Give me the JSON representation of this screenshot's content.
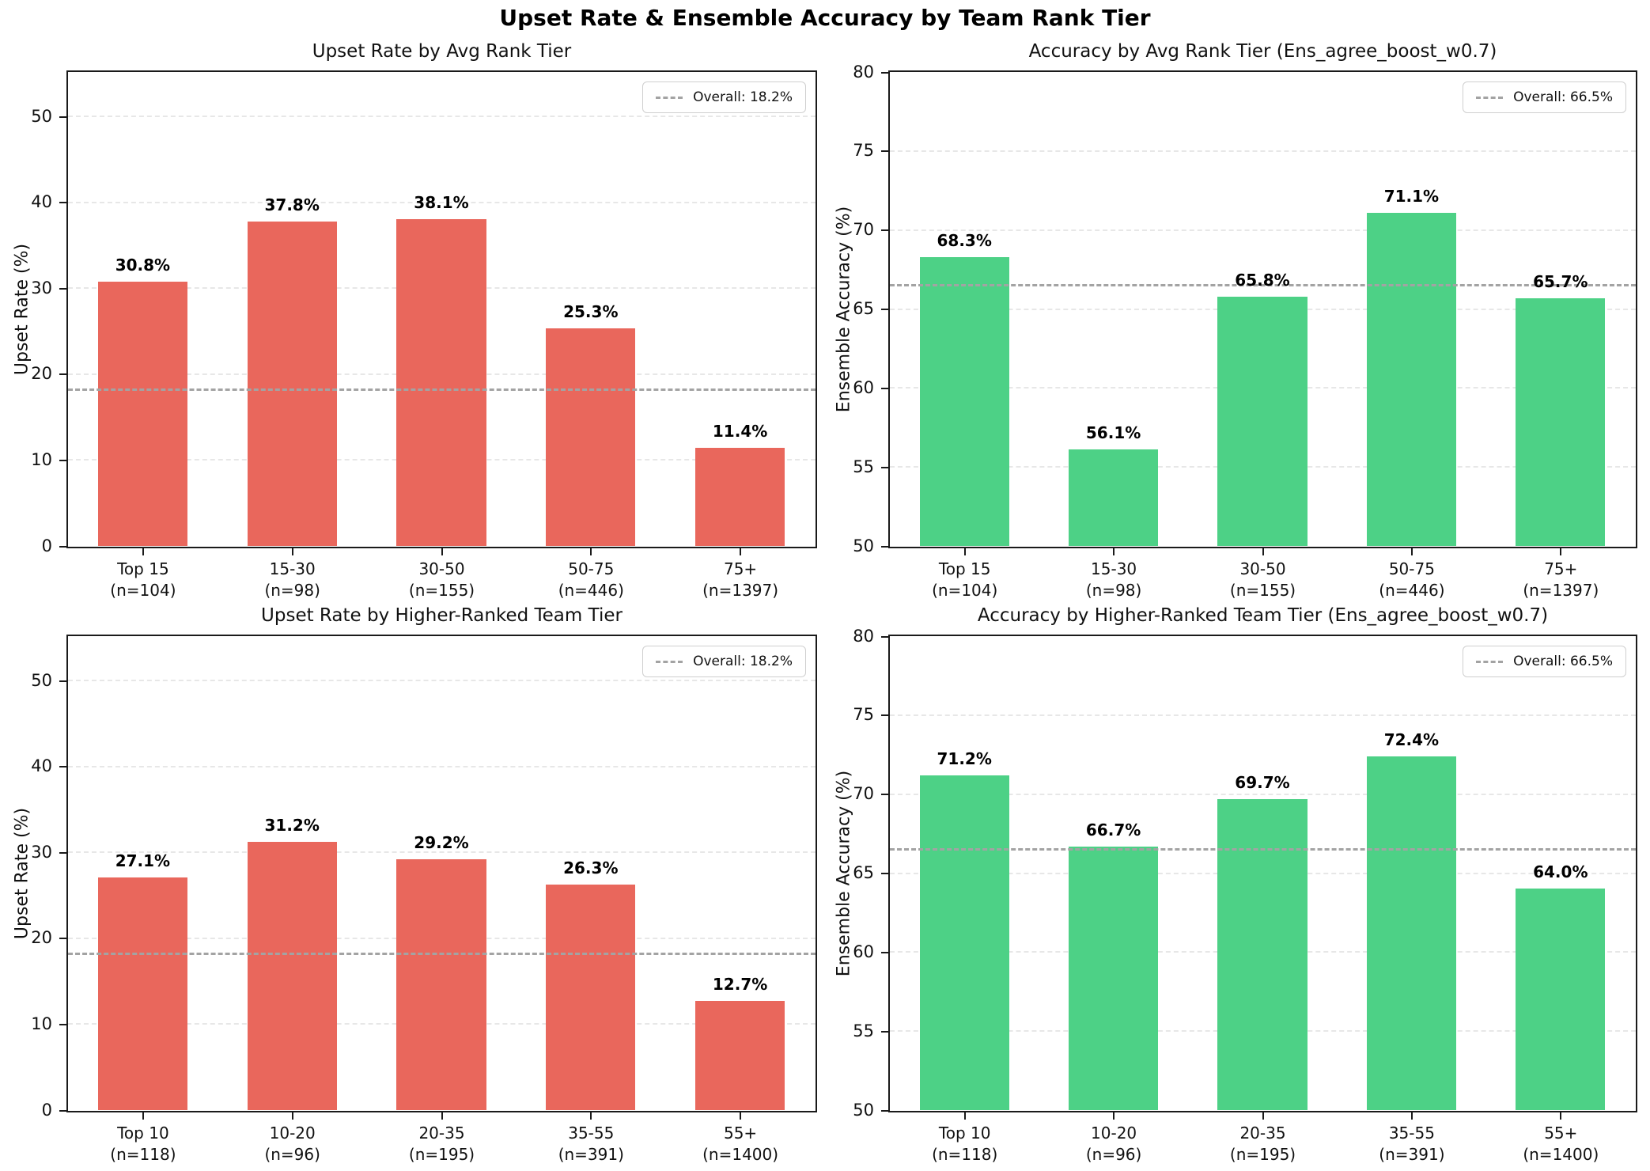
{
  "figure": {
    "title": "Upset Rate & Ensemble Accuracy by Team Rank Tier"
  },
  "colors": {
    "upset_bar": "#e9675c",
    "accuracy_bar": "#4dd186",
    "overall_line": "#a3a3a3",
    "gridline": "#e7e7e7"
  },
  "chart_data": [
    {
      "type": "bar",
      "title": "Upset Rate by Avg Rank Tier",
      "ylabel": "Upset Rate (%)",
      "ylim": [
        0,
        55.2
      ],
      "yticks": [
        0,
        10,
        20,
        30,
        40,
        50
      ],
      "grid": true,
      "legend_position": "upper right",
      "bar_color": "#e9675c",
      "categories": [
        "Top 15",
        "15-30",
        "30-50",
        "50-75",
        "75+"
      ],
      "counts": [
        "(n=104)",
        "(n=98)",
        "(n=155)",
        "(n=446)",
        "(n=1397)"
      ],
      "values": [
        30.8,
        37.8,
        38.1,
        25.3,
        11.4
      ],
      "value_labels": [
        "30.8%",
        "37.8%",
        "38.1%",
        "25.3%",
        "11.4%"
      ],
      "overall_value": 18.2,
      "legend_label": "Overall: 18.2%"
    },
    {
      "type": "bar",
      "title": "Accuracy by Avg Rank Tier (Ens_agree_boost_w0.7)",
      "ylabel": "Ensemble Accuracy (%)",
      "ylim": [
        50,
        80
      ],
      "yticks": [
        50,
        55,
        60,
        65,
        70,
        75,
        80
      ],
      "grid": true,
      "legend_position": "upper right",
      "bar_color": "#4dd186",
      "categories": [
        "Top 15",
        "15-30",
        "30-50",
        "50-75",
        "75+"
      ],
      "counts": [
        "(n=104)",
        "(n=98)",
        "(n=155)",
        "(n=446)",
        "(n=1397)"
      ],
      "values": [
        68.3,
        56.1,
        65.8,
        71.1,
        65.7
      ],
      "value_labels": [
        "68.3%",
        "56.1%",
        "65.8%",
        "71.1%",
        "65.7%"
      ],
      "overall_value": 66.5,
      "legend_label": "Overall: 66.5%"
    },
    {
      "type": "bar",
      "title": "Upset Rate by Higher-Ranked Team Tier",
      "ylabel": "Upset Rate (%)",
      "ylim": [
        0,
        55.2
      ],
      "yticks": [
        0,
        10,
        20,
        30,
        40,
        50
      ],
      "grid": true,
      "legend_position": "upper right",
      "bar_color": "#e9675c",
      "categories": [
        "Top 10",
        "10-20",
        "20-35",
        "35-55",
        "55+"
      ],
      "counts": [
        "(n=118)",
        "(n=96)",
        "(n=195)",
        "(n=391)",
        "(n=1400)"
      ],
      "values": [
        27.1,
        31.2,
        29.2,
        26.3,
        12.7
      ],
      "value_labels": [
        "27.1%",
        "31.2%",
        "29.2%",
        "26.3%",
        "12.7%"
      ],
      "overall_value": 18.2,
      "legend_label": "Overall: 18.2%"
    },
    {
      "type": "bar",
      "title": "Accuracy by Higher-Ranked Team Tier (Ens_agree_boost_w0.7)",
      "ylabel": "Ensemble Accuracy (%)",
      "ylim": [
        50,
        80
      ],
      "yticks": [
        50,
        55,
        60,
        65,
        70,
        75,
        80
      ],
      "grid": true,
      "legend_position": "upper right",
      "bar_color": "#4dd186",
      "categories": [
        "Top 10",
        "10-20",
        "20-35",
        "35-55",
        "55+"
      ],
      "counts": [
        "(n=118)",
        "(n=96)",
        "(n=195)",
        "(n=391)",
        "(n=1400)"
      ],
      "values": [
        71.2,
        66.7,
        69.7,
        72.4,
        64.0
      ],
      "value_labels": [
        "71.2%",
        "66.7%",
        "69.7%",
        "72.4%",
        "64.0%"
      ],
      "overall_value": 66.5,
      "legend_label": "Overall: 66.5%"
    }
  ]
}
